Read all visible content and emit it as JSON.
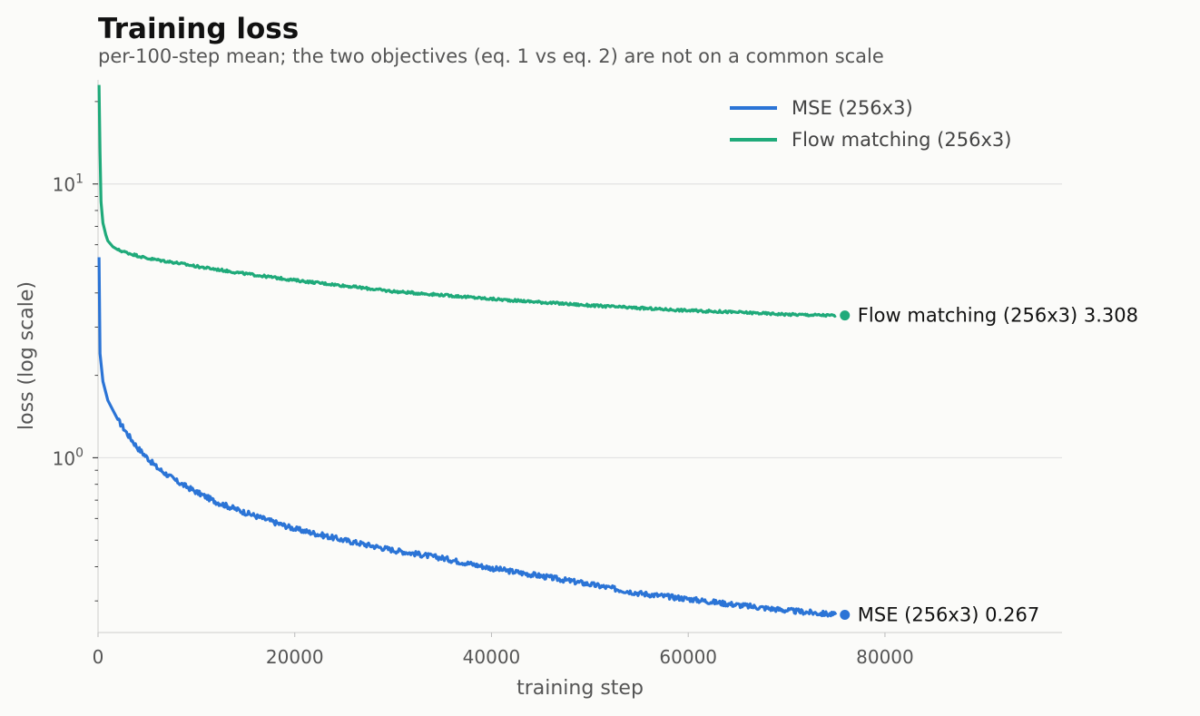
{
  "chart_data": {
    "type": "line",
    "title": "Training loss",
    "subtitle": "per-100-step mean; the two objectives (eq. 1 vs eq. 2) are not on a common scale",
    "xlabel": "training step",
    "ylabel": "loss (log scale)",
    "xlim": [
      0,
      98000
    ],
    "ylim": [
      0.23,
      24
    ],
    "yscale": "log",
    "x_ticks": [
      0,
      20000,
      40000,
      60000,
      80000
    ],
    "x_tick_labels": [
      "0",
      "20000",
      "40000",
      "60000",
      "80000"
    ],
    "y_ticks": [
      1,
      10
    ],
    "y_tick_labels": [
      {
        "base": "10",
        "exp": "0"
      },
      {
        "base": "10",
        "exp": "1"
      }
    ],
    "grid": "horizontal at major y ticks",
    "legend_position": "top-right",
    "series": [
      {
        "name": "MSE (256x3)",
        "color": "#2b74d6",
        "end_label": "MSE (256x3)  0.267",
        "final_value": 0.267,
        "points": [
          [
            100,
            5.4
          ],
          [
            200,
            2.4
          ],
          [
            500,
            1.9
          ],
          [
            1000,
            1.62
          ],
          [
            2000,
            1.38
          ],
          [
            3000,
            1.22
          ],
          [
            4000,
            1.09
          ],
          [
            5000,
            1.0
          ],
          [
            6000,
            0.92
          ],
          [
            8000,
            0.82
          ],
          [
            10000,
            0.75
          ],
          [
            12000,
            0.69
          ],
          [
            15000,
            0.63
          ],
          [
            18000,
            0.58
          ],
          [
            20000,
            0.55
          ],
          [
            25000,
            0.5
          ],
          [
            30000,
            0.46
          ],
          [
            35000,
            0.43
          ],
          [
            40000,
            0.395
          ],
          [
            45000,
            0.37
          ],
          [
            50000,
            0.345
          ],
          [
            55000,
            0.32
          ],
          [
            60000,
            0.305
          ],
          [
            65000,
            0.29
          ],
          [
            70000,
            0.277
          ],
          [
            75000,
            0.267
          ]
        ]
      },
      {
        "name": "Flow matching (256x3)",
        "color": "#1faa7a",
        "end_label": "Flow matching (256x3)  3.308",
        "final_value": 3.308,
        "points": [
          [
            100,
            23
          ],
          [
            200,
            13
          ],
          [
            300,
            8.6
          ],
          [
            500,
            7.2
          ],
          [
            800,
            6.5
          ],
          [
            1000,
            6.2
          ],
          [
            1500,
            5.9
          ],
          [
            2000,
            5.75
          ],
          [
            3000,
            5.6
          ],
          [
            5000,
            5.35
          ],
          [
            8000,
            5.15
          ],
          [
            10000,
            5.0
          ],
          [
            15000,
            4.7
          ],
          [
            20000,
            4.45
          ],
          [
            25000,
            4.25
          ],
          [
            30000,
            4.05
          ],
          [
            35000,
            3.93
          ],
          [
            40000,
            3.8
          ],
          [
            45000,
            3.7
          ],
          [
            50000,
            3.6
          ],
          [
            55000,
            3.52
          ],
          [
            60000,
            3.45
          ],
          [
            65000,
            3.4
          ],
          [
            70000,
            3.34
          ],
          [
            75000,
            3.308
          ]
        ]
      }
    ]
  }
}
